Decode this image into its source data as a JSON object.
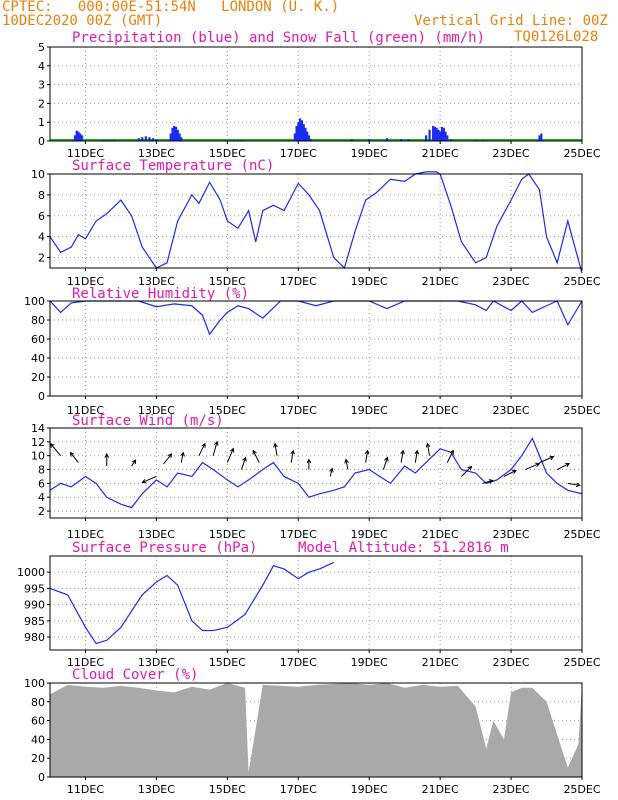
{
  "header": {
    "line1": "CPTEC:   000:00E-51:54N   LONDON (U. K.)",
    "line2": "10DEC2020 00Z (GMT)",
    "grid_note": "Vertical Grid Line: 00Z",
    "code": "TQ0126L028"
  },
  "colors": {
    "orange": "#e8820c",
    "magenta": "#e01ab4",
    "blue": "#1a2cf0",
    "green": "#22aa22",
    "gray": "#a9a9a9"
  },
  "x_ticks": [
    "11DEC",
    "13DEC",
    "15DEC",
    "17DEC",
    "19DEC",
    "21DEC",
    "23DEC",
    "25DEC"
  ],
  "chart_data": [
    {
      "type": "bar",
      "title": "Precipitation (blue) and Snow Fall (green) (mm/h)",
      "ylim": [
        0,
        5
      ],
      "yticks": [
        "0",
        "1",
        "2",
        "3",
        "4",
        "5"
      ],
      "x_days": [
        10.7,
        10.75,
        10.8,
        10.85,
        10.9,
        11.5,
        11.6,
        11.7,
        11.8,
        12.5,
        12.6,
        12.7,
        12.8,
        12.9,
        13.0,
        13.4,
        13.45,
        13.5,
        13.55,
        13.6,
        13.65,
        13.7,
        15.2,
        15.3,
        15.4,
        16.9,
        16.95,
        17.0,
        17.05,
        17.1,
        17.15,
        17.2,
        17.25,
        17.3,
        17.35,
        18.5,
        19.0,
        19.5,
        19.9,
        20.1,
        20.6,
        20.7,
        20.8,
        20.85,
        20.9,
        20.95,
        21.0,
        21.05,
        21.1,
        21.15,
        21.2,
        21.3,
        22.0,
        22.2,
        23.8,
        23.85
      ],
      "values": [
        0.3,
        0.55,
        0.5,
        0.4,
        0.3,
        0.05,
        0.05,
        0.05,
        0.05,
        0.15,
        0.2,
        0.25,
        0.2,
        0.15,
        0.1,
        0.4,
        0.7,
        0.8,
        0.75,
        0.6,
        0.4,
        0.2,
        0.05,
        0.05,
        0.05,
        0.4,
        0.8,
        1.0,
        1.2,
        1.1,
        0.9,
        0.7,
        0.5,
        0.3,
        0.1,
        0.1,
        0.1,
        0.15,
        0.1,
        0.1,
        0.3,
        0.6,
        0.8,
        0.75,
        0.7,
        0.6,
        0.5,
        0.75,
        0.7,
        0.5,
        0.3,
        0.1,
        0.05,
        0.05,
        0.3,
        0.4
      ]
    },
    {
      "type": "line",
      "title": "Surface Temperature (nC)",
      "ylim": [
        1,
        10
      ],
      "yticks": [
        "2",
        "4",
        "6",
        "8",
        "10"
      ],
      "x_days": [
        10,
        10.3,
        10.6,
        10.8,
        11,
        11.3,
        11.6,
        12,
        12.3,
        12.6,
        13,
        13.3,
        13.6,
        14,
        14.2,
        14.5,
        14.8,
        15,
        15.3,
        15.6,
        15.8,
        16,
        16.3,
        16.6,
        17,
        17.3,
        17.6,
        18,
        18.3,
        18.6,
        18.9,
        19.2,
        19.6,
        20,
        20.3,
        20.6,
        20.9,
        21,
        21.3,
        21.6,
        22,
        22.3,
        22.6,
        23,
        23.3,
        23.5,
        23.8,
        24,
        24.3,
        24.6,
        25
      ],
      "values": [
        4,
        2.5,
        3,
        4.2,
        3.8,
        5.5,
        6.2,
        7.5,
        6,
        3,
        1,
        1.5,
        5.5,
        8,
        7.2,
        9.2,
        7.5,
        5.5,
        4.8,
        6.5,
        3.5,
        6.5,
        7,
        6.5,
        9.1,
        8,
        6.5,
        2,
        1,
        4.5,
        7.5,
        8.2,
        9.5,
        9.3,
        10,
        10.2,
        10.2,
        10,
        7,
        3.5,
        1.5,
        2,
        5,
        7.5,
        9.5,
        10,
        8.5,
        4,
        1.5,
        5.5,
        0.5
      ]
    },
    {
      "type": "line",
      "title": "Relative Humidity (%)",
      "ylim": [
        0,
        100
      ],
      "yticks": [
        "0",
        "20",
        "40",
        "60",
        "80",
        "100"
      ],
      "x_days": [
        10,
        10.3,
        10.6,
        11,
        11.5,
        12,
        12.5,
        13,
        13.5,
        14,
        14.3,
        14.5,
        14.8,
        15,
        15.3,
        15.6,
        16,
        16.5,
        17,
        17.5,
        18,
        18.5,
        19,
        19.5,
        20,
        20.5,
        21,
        21.5,
        22,
        22.3,
        22.5,
        23,
        23.3,
        23.6,
        24,
        24.3,
        24.6,
        25
      ],
      "values": [
        100,
        88,
        98,
        100,
        100,
        100,
        100,
        94,
        97,
        95,
        85,
        65,
        80,
        88,
        95,
        92,
        82,
        100,
        100,
        95,
        100,
        100,
        100,
        92,
        100,
        100,
        100,
        100,
        96,
        90,
        100,
        90,
        100,
        88,
        95,
        100,
        75,
        100
      ]
    },
    {
      "type": "line",
      "title": "Surface Wind (m/s)",
      "ylim": [
        1,
        14
      ],
      "yticks": [
        "2",
        "4",
        "6",
        "8",
        "10",
        "12",
        "14"
      ],
      "x_days": [
        10,
        10.3,
        10.6,
        11,
        11.3,
        11.6,
        12,
        12.3,
        12.6,
        13,
        13.3,
        13.6,
        14,
        14.3,
        14.6,
        15,
        15.3,
        15.6,
        16,
        16.3,
        16.6,
        17,
        17.3,
        17.6,
        18,
        18.3,
        18.6,
        19,
        19.3,
        19.6,
        20,
        20.3,
        20.6,
        21,
        21.3,
        21.6,
        22,
        22.3,
        22.6,
        23,
        23.3,
        23.6,
        24,
        24.3,
        24.6,
        25
      ],
      "values": [
        5,
        6,
        5.5,
        7,
        6,
        4,
        3,
        2.5,
        4.5,
        6.5,
        5.5,
        7.5,
        7,
        9,
        8,
        6.5,
        5.5,
        6.5,
        8,
        9,
        7,
        6,
        4,
        4.5,
        5,
        5.5,
        7.5,
        8,
        7,
        6,
        8.5,
        7.5,
        9,
        11,
        10.5,
        8,
        7.5,
        6,
        6.5,
        8,
        10,
        12.5,
        7.5,
        6,
        5,
        4.5
      ]
    },
    {
      "type": "line",
      "title": "Surface Pressure (hPa)",
      "note": "Model Altitude: 51.2816 m",
      "ylim": [
        976,
        1005
      ],
      "yticks": [
        "980",
        "985",
        "990",
        "995",
        "1000"
      ],
      "x_days": [
        10,
        10.5,
        11,
        11.3,
        11.6,
        12,
        12.3,
        12.6,
        13,
        13.3,
        13.6,
        14,
        14.3,
        14.6,
        15,
        15.5,
        16,
        16.3,
        16.6,
        17,
        17.3,
        17.6,
        18
      ],
      "values": [
        995,
        993,
        983,
        978,
        979,
        983,
        988,
        993,
        997,
        999,
        996,
        985,
        982,
        982,
        983,
        987,
        996,
        1002,
        1001,
        998,
        1000,
        1001,
        1003
      ]
    },
    {
      "type": "area",
      "title": "Cloud Cover (%)",
      "ylim": [
        0,
        100
      ],
      "yticks": [
        "0",
        "20",
        "40",
        "60",
        "80",
        "100"
      ],
      "x_days": [
        10,
        10.5,
        11,
        11.5,
        12,
        12.5,
        13,
        13.5,
        14,
        14.5,
        15,
        15.5,
        15.6,
        16,
        16.5,
        17,
        17.5,
        18,
        18.5,
        19,
        19.5,
        20,
        20.5,
        21,
        21.5,
        22,
        22.3,
        22.5,
        22.8,
        23,
        23.3,
        23.6,
        24,
        24.3,
        24.6,
        24.9,
        25
      ],
      "values": [
        88,
        98,
        96,
        95,
        97,
        95,
        92,
        90,
        96,
        93,
        100,
        95,
        5,
        98,
        97,
        96,
        98,
        99,
        100,
        98,
        100,
        95,
        98,
        96,
        97,
        75,
        30,
        60,
        40,
        90,
        95,
        95,
        80,
        45,
        10,
        35,
        100
      ]
    }
  ]
}
